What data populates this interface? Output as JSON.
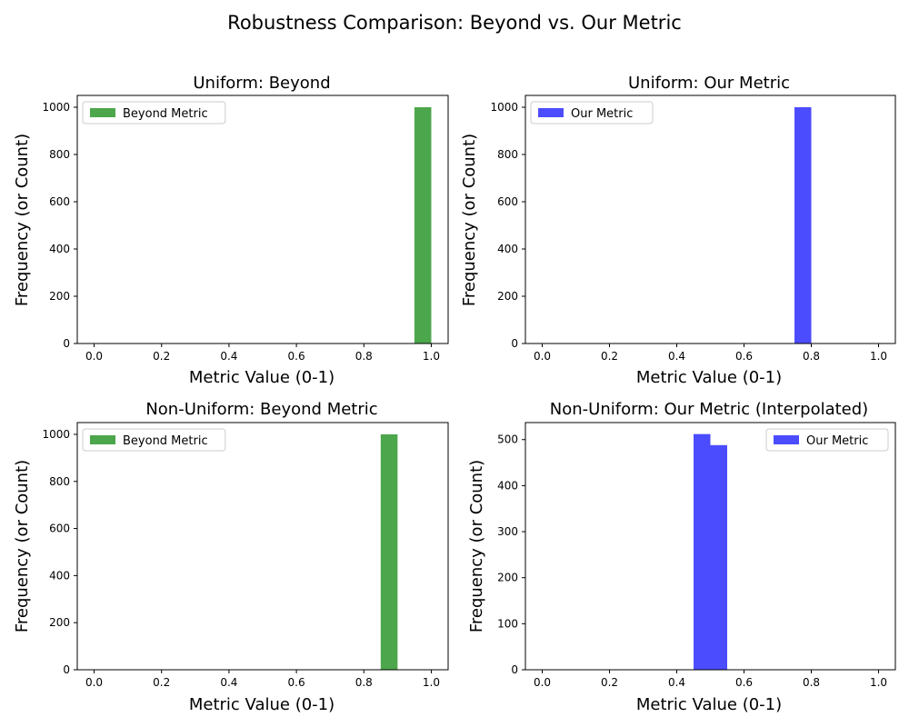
{
  "figure": {
    "title": "Robustness Comparison: Beyond vs. Our Metric"
  },
  "chart_data": [
    {
      "type": "bar",
      "title": "Uniform: Beyond",
      "xlabel": "Metric Value (0-1)",
      "ylabel": "Frequency (or Count)",
      "xlim": [
        -0.05,
        1.05
      ],
      "ylim": [
        0,
        1050
      ],
      "xticks": [
        "0.0",
        "0.2",
        "0.4",
        "0.6",
        "0.8",
        "1.0"
      ],
      "yticks": [
        "0",
        "200",
        "400",
        "600",
        "800",
        "1000"
      ],
      "legend": {
        "position": "upper-left"
      },
      "color": "#4ca64c",
      "series": [
        {
          "name": "Beyond Metric",
          "bins": [
            {
              "start": 0.95,
              "end": 1.0,
              "count": 1000
            }
          ]
        }
      ]
    },
    {
      "type": "bar",
      "title": "Uniform: Our Metric",
      "xlabel": "Metric Value (0-1)",
      "ylabel": "Frequency (or Count)",
      "xlim": [
        -0.05,
        1.05
      ],
      "ylim": [
        0,
        1050
      ],
      "xticks": [
        "0.0",
        "0.2",
        "0.4",
        "0.6",
        "0.8",
        "1.0"
      ],
      "yticks": [
        "0",
        "200",
        "400",
        "600",
        "800",
        "1000"
      ],
      "legend": {
        "position": "upper-left"
      },
      "color": "#4c4cff",
      "series": [
        {
          "name": "Our Metric",
          "bins": [
            {
              "start": 0.75,
              "end": 0.8,
              "count": 1000
            }
          ]
        }
      ]
    },
    {
      "type": "bar",
      "title": "Non-Uniform: Beyond Metric",
      "xlabel": "Metric Value (0-1)",
      "ylabel": "Frequency (or Count)",
      "xlim": [
        -0.05,
        1.05
      ],
      "ylim": [
        0,
        1050
      ],
      "xticks": [
        "0.0",
        "0.2",
        "0.4",
        "0.6",
        "0.8",
        "1.0"
      ],
      "yticks": [
        "0",
        "200",
        "400",
        "600",
        "800",
        "1000"
      ],
      "legend": {
        "position": "upper-left"
      },
      "color": "#4ca64c",
      "series": [
        {
          "name": "Beyond Metric",
          "bins": [
            {
              "start": 0.85,
              "end": 0.9,
              "count": 1000
            }
          ]
        }
      ]
    },
    {
      "type": "bar",
      "title": "Non-Uniform: Our Metric (Interpolated)",
      "xlabel": "Metric Value (0-1)",
      "ylabel": "Frequency (or Count)",
      "xlim": [
        -0.05,
        1.05
      ],
      "ylim": [
        0,
        537
      ],
      "xticks": [
        "0.0",
        "0.2",
        "0.4",
        "0.6",
        "0.8",
        "1.0"
      ],
      "yticks": [
        "0",
        "100",
        "200",
        "300",
        "400",
        "500"
      ],
      "legend": {
        "position": "upper-right"
      },
      "color": "#4c4cff",
      "series": [
        {
          "name": "Our Metric",
          "bins": [
            {
              "start": 0.45,
              "end": 0.5,
              "count": 512
            },
            {
              "start": 0.5,
              "end": 0.55,
              "count": 488
            }
          ]
        }
      ]
    }
  ]
}
